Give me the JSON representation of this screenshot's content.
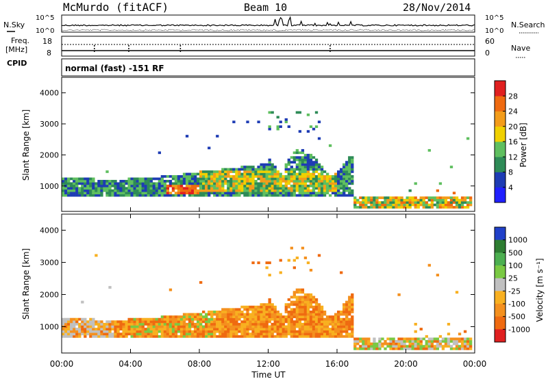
{
  "header": {
    "station": "McMurdo (fitACF)",
    "beam": "Beam 10",
    "date": "28/Nov/2014"
  },
  "noise_panel": {
    "left_label": "N.Sky",
    "right_label": "N.Search",
    "ticks_left": [
      "10^5",
      "10^0"
    ],
    "ticks_right": [
      "10^5",
      "10^0"
    ]
  },
  "freq_panel": {
    "left_label_1": "Freq.",
    "left_label_2": "[MHz]",
    "left_label_3": "CPID",
    "right_label": "Nave",
    "ticks_left": [
      "18",
      "8"
    ],
    "ticks_right": [
      "60",
      "0"
    ],
    "cpid_text": "normal (fast) -151 RF"
  },
  "time_axis": {
    "label": "Time UT",
    "ticks": [
      "00:00",
      "04:00",
      "08:00",
      "12:00",
      "16:00",
      "20:00",
      "00:00"
    ]
  },
  "chart_data": [
    {
      "type": "heatmap",
      "name": "power",
      "ylabel": "Slant Range [km]",
      "ylim": [
        180,
        4500
      ],
      "xlim_hours": [
        0,
        24
      ],
      "y_ticks": [
        "1000",
        "2000",
        "3000",
        "4000"
      ],
      "colorbar": {
        "label": "Power [dB]",
        "ticks": [
          "4",
          "8",
          "12",
          "16",
          "20",
          "24",
          "28"
        ],
        "colors": [
          "#2020ff",
          "#1e3cb4",
          "#2e8b57",
          "#5fbf5f",
          "#f0d000",
          "#f39c1a",
          "#ef6a10",
          "#e02020"
        ]
      }
    },
    {
      "type": "heatmap",
      "name": "velocity",
      "ylabel": "Slant Range [km]",
      "ylim": [
        180,
        4500
      ],
      "xlim_hours": [
        0,
        24
      ],
      "y_ticks": [
        "1000",
        "2000",
        "3000",
        "4000"
      ],
      "colorbar": {
        "label": "Velocity [m s⁻¹]",
        "ticks": [
          "1000",
          "500",
          "100",
          "25",
          "-25",
          "-100",
          "-500",
          "-1000"
        ],
        "colors": [
          "#2040c8",
          "#2e7d32",
          "#4caf50",
          "#7ac943",
          "#c0c0c0",
          "#f8b020",
          "#f4901e",
          "#ef6a10",
          "#e02020"
        ]
      }
    }
  ]
}
